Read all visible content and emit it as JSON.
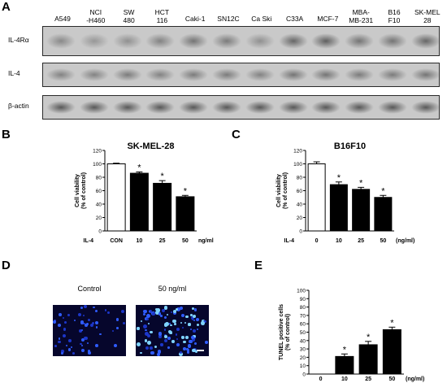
{
  "panels": {
    "a": "A",
    "b": "B",
    "c": "C",
    "d": "D",
    "e": "E"
  },
  "blot": {
    "lanes": [
      "A549",
      "NCI\n-H460",
      "SW\n480",
      "HCT\n116",
      "Caki-1",
      "SN12C",
      "Ca Ski",
      "C33A",
      "MCF-7",
      "MBA-\nMB-231",
      "B16\nF10",
      "SK-MEL\n28"
    ],
    "rows": [
      {
        "label": "IL-4Rα",
        "intensity": [
          0.45,
          0.35,
          0.4,
          0.5,
          0.6,
          0.55,
          0.4,
          0.7,
          0.75,
          0.6,
          0.6,
          0.7
        ]
      },
      {
        "label": "IL-4",
        "intensity": [
          0.5,
          0.5,
          0.55,
          0.5,
          0.55,
          0.55,
          0.5,
          0.6,
          0.6,
          0.55,
          0.55,
          0.6
        ]
      },
      {
        "label": "β-actin",
        "intensity": [
          0.8,
          0.8,
          0.8,
          0.8,
          0.8,
          0.8,
          0.8,
          0.8,
          0.8,
          0.8,
          0.8,
          0.8
        ]
      }
    ]
  },
  "microscopy": {
    "labels": [
      "Control",
      "50 ng/ml"
    ]
  },
  "chart_data": [
    {
      "id": "B",
      "type": "bar",
      "title": "SK-MEL-28",
      "ylabel": "Cell viability\n(% of control)",
      "row_label": "IL-4",
      "unit": "ng/ml",
      "categories": [
        "CON",
        "10",
        "25",
        "50"
      ],
      "values": [
        100,
        86,
        71,
        51
      ],
      "errors": [
        1,
        2,
        4,
        2
      ],
      "significance": [
        "",
        "*",
        "*",
        "*"
      ],
      "filled": [
        false,
        true,
        true,
        true
      ],
      "ylim": [
        0,
        120
      ],
      "yticks": [
        0,
        20,
        40,
        60,
        80,
        100,
        120
      ]
    },
    {
      "id": "C",
      "type": "bar",
      "title": "B16F10",
      "ylabel": "Cell viability\n(% of control)",
      "row_label": "IL-4",
      "unit": "(ng/ml)",
      "categories": [
        "0",
        "10",
        "25",
        "50"
      ],
      "values": [
        100,
        69,
        62,
        50
      ],
      "errors": [
        3,
        4,
        3,
        3
      ],
      "significance": [
        "",
        "*",
        "*",
        "*"
      ],
      "filled": [
        false,
        true,
        true,
        true
      ],
      "ylim": [
        0,
        120
      ],
      "yticks": [
        0,
        20,
        40,
        60,
        80,
        100,
        120
      ]
    },
    {
      "id": "E",
      "type": "bar",
      "title": "",
      "ylabel": "TUNEL positive cells\n(% of control)",
      "row_label": "",
      "unit": "(ng/ml)",
      "categories": [
        "0",
        "10",
        "25",
        "50"
      ],
      "values": [
        0,
        21,
        35,
        53
      ],
      "errors": [
        0,
        3,
        4,
        3
      ],
      "significance": [
        "",
        "*",
        "*",
        "*"
      ],
      "filled": [
        true,
        true,
        true,
        true
      ],
      "ylim": [
        0,
        100
      ],
      "yticks": [
        0,
        10,
        20,
        30,
        40,
        50,
        60,
        70,
        80,
        90,
        100
      ]
    }
  ]
}
